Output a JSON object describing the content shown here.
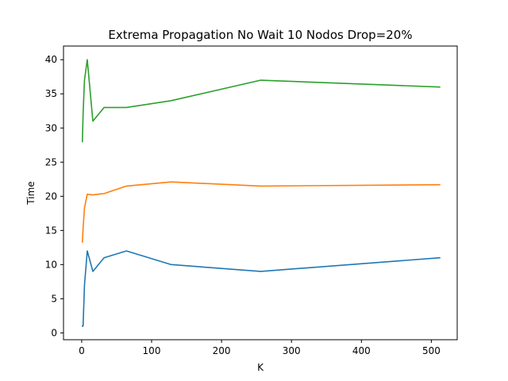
{
  "chart_data": {
    "type": "line",
    "title": "Extrema Propagation No Wait 10 Nodos Drop=20%",
    "xlabel": "K",
    "ylabel": "Time",
    "xlim": [
      -26,
      537
    ],
    "ylim": [
      -1,
      42
    ],
    "x_ticks": [
      0,
      100,
      200,
      300,
      400,
      500
    ],
    "y_ticks": [
      0,
      5,
      10,
      15,
      20,
      25,
      30,
      35,
      40
    ],
    "grid": false,
    "legend": "none",
    "series": [
      {
        "color": "#1f77b4",
        "x": [
          1,
          2,
          4,
          8,
          16,
          32,
          64,
          128,
          256,
          512
        ],
        "y": [
          1,
          1,
          7,
          12,
          9,
          11,
          12,
          10,
          9,
          11
        ]
      },
      {
        "color": "#ff7f0e",
        "x": [
          1,
          2,
          4,
          8,
          16,
          32,
          64,
          128,
          256,
          512
        ],
        "y": [
          13.3,
          15.3,
          18.3,
          20.3,
          20.2,
          20.4,
          21.5,
          22.1,
          21.5,
          21.7
        ]
      },
      {
        "color": "#2ca02c",
        "x": [
          1,
          2,
          4,
          8,
          16,
          32,
          64,
          128,
          256,
          512
        ],
        "y": [
          28,
          32,
          37,
          40,
          31,
          33,
          33,
          34,
          37,
          36
        ]
      }
    ]
  }
}
